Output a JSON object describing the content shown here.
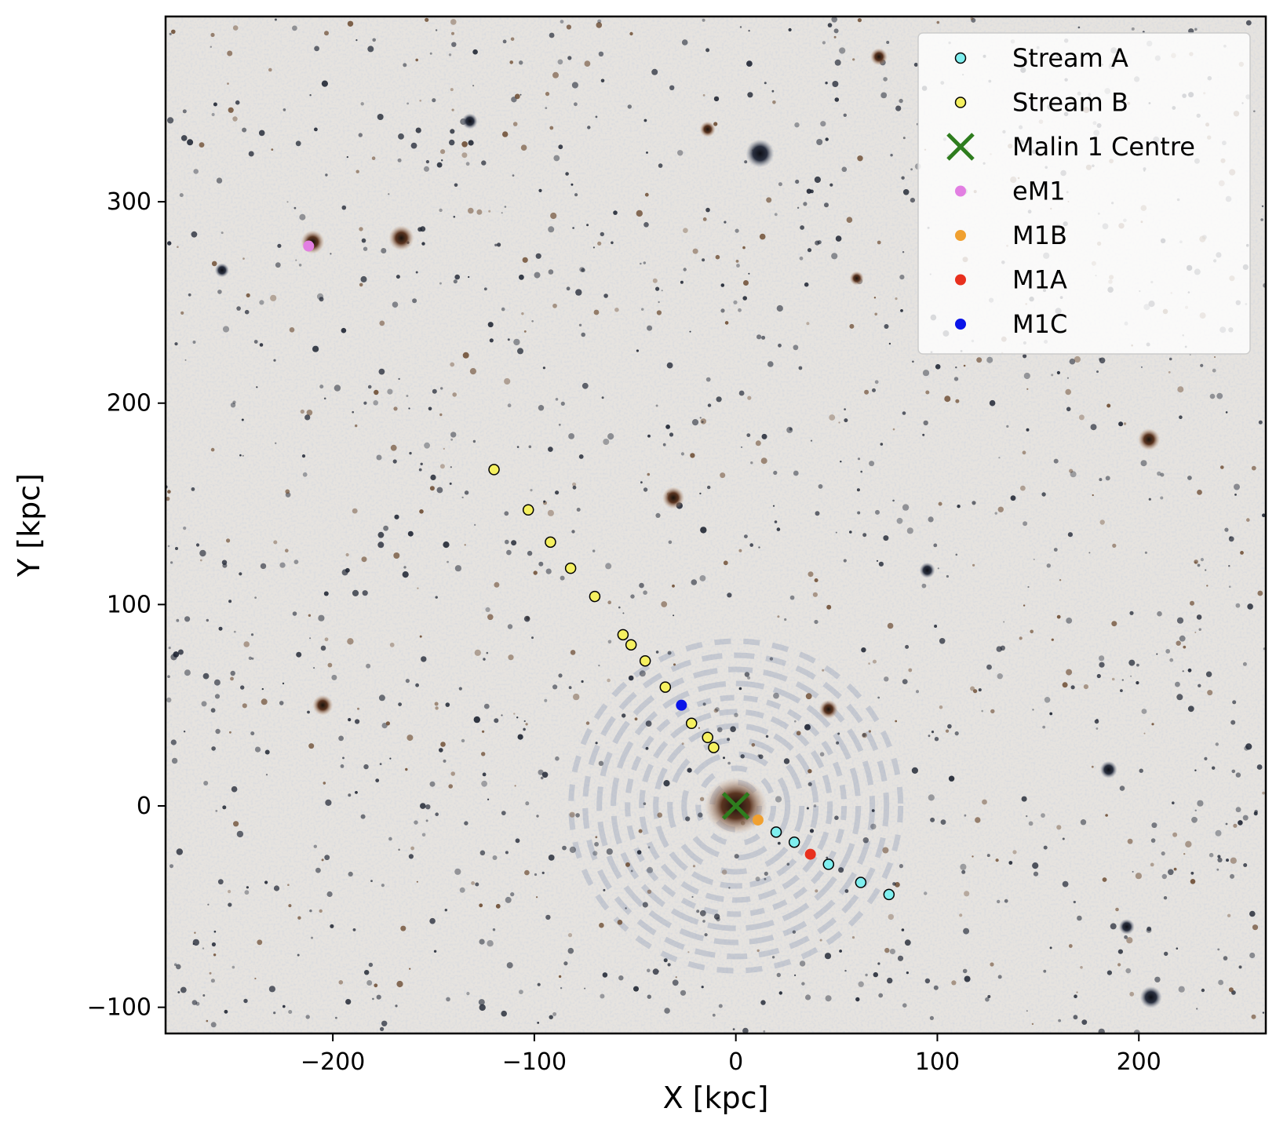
{
  "chart_data": {
    "type": "scatter",
    "title": "",
    "xlabel": "X [kpc]",
    "ylabel": "Y [kpc]",
    "xlim": [
      -283,
      263
    ],
    "ylim": [
      -113,
      392
    ],
    "xticks": [
      -200,
      -100,
      0,
      100,
      200
    ],
    "yticks": [
      -100,
      0,
      100,
      200,
      300
    ],
    "xtick_labels": [
      "−200",
      "−100",
      "0",
      "100",
      "200"
    ],
    "ytick_labels": [
      "−100",
      "0",
      "100",
      "200",
      "300"
    ],
    "grid": false,
    "background": "astronomical image of Malin 1 field (inverted colors)",
    "legend_position": "top-right",
    "series": [
      {
        "name": "Stream A",
        "marker": "circle-outlined",
        "color": "#7fefef",
        "points": [
          [
            20,
            -13
          ],
          [
            29,
            -18
          ],
          [
            46,
            -29
          ],
          [
            62,
            -38
          ],
          [
            76,
            -44
          ]
        ]
      },
      {
        "name": "Stream B",
        "marker": "circle-outlined",
        "color": "#f5f060",
        "points": [
          [
            -120,
            167
          ],
          [
            -103,
            147
          ],
          [
            -92,
            131
          ],
          [
            -82,
            118
          ],
          [
            -70,
            104
          ],
          [
            -56,
            85
          ],
          [
            -52,
            80
          ],
          [
            -45,
            72
          ],
          [
            -35,
            59
          ],
          [
            -22,
            41
          ],
          [
            -14,
            34
          ],
          [
            -11,
            29
          ]
        ]
      },
      {
        "name": "Malin 1 Centre",
        "marker": "x",
        "color": "#2e7d1e",
        "points": [
          [
            0,
            0
          ]
        ]
      },
      {
        "name": "eM1",
        "marker": "circle",
        "color": "#e27fe2",
        "points": [
          [
            -212,
            278
          ]
        ]
      },
      {
        "name": "M1B",
        "marker": "circle",
        "color": "#f0a030",
        "points": [
          [
            11,
            -7
          ]
        ]
      },
      {
        "name": "M1A",
        "marker": "circle",
        "color": "#e8301e",
        "points": [
          [
            37,
            -24
          ]
        ]
      },
      {
        "name": "M1C",
        "marker": "circle",
        "color": "#0a14e8",
        "points": [
          [
            -27,
            50
          ]
        ]
      }
    ]
  }
}
